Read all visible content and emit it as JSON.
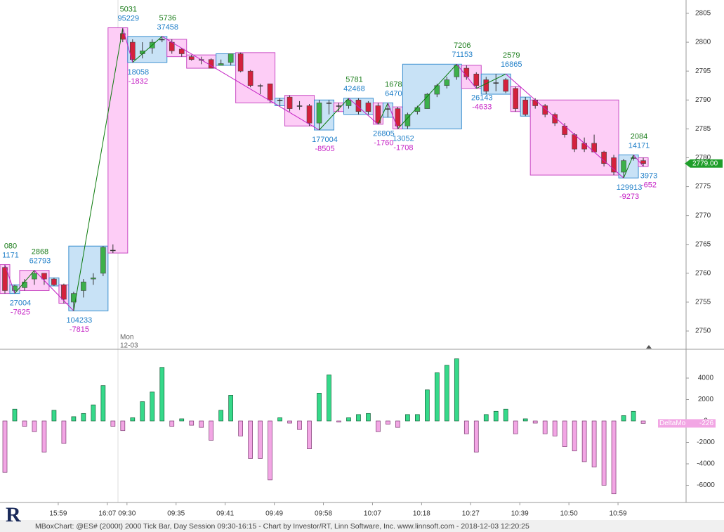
{
  "chart_data": [
    {
      "type": "candlestick",
      "ylim": [
        2746.96,
        2807.31
      ],
      "yticks": [
        2805,
        2800,
        2795,
        2790,
        2785,
        2780,
        2775,
        2770,
        2765,
        2760,
        2755,
        2750
      ],
      "up_color": "#3cb04a",
      "down_color": "#d4213d",
      "open": [
        2761,
        2757,
        2757.5,
        2759,
        2760,
        2759,
        2758,
        2755,
        2757,
        2759,
        2760,
        2764,
        2801.5,
        2800,
        2798,
        2799,
        2800.5,
        2800,
        2798.8,
        2797.5,
        2797,
        2797,
        2796,
        2796.5,
        2798,
        2795,
        2792.5,
        2792.8,
        2790,
        2790.5,
        2789,
        2789,
        2786,
        2789.5,
        2789,
        2789,
        2790,
        2789.5,
        2789,
        2788.5,
        2788.5,
        2785.5,
        2788,
        2788.5,
        2791,
        2792.5,
        2794,
        2795.5,
        2794.5,
        2793.5,
        2793,
        2793.5,
        2792,
        2790,
        2790,
        2789,
        2787.5,
        2785.5,
        2784,
        2782.5,
        2782.5,
        2781,
        2780,
        2777.5,
        2780,
        2779.5
      ],
      "high": [
        2761.5,
        2758,
        2759,
        2760.5,
        2760,
        2759.2,
        2758.2,
        2756.8,
        2759,
        2760,
        2764.7,
        2765,
        2802.5,
        2800.5,
        2800,
        2800.5,
        2801,
        2800.5,
        2799,
        2797.8,
        2797.5,
        2797.2,
        2797,
        2798,
        2798.2,
        2795.2,
        2792.8,
        2792.8,
        2790.3,
        2790.8,
        2789.8,
        2789.3,
        2790,
        2790,
        2789.5,
        2790.3,
        2790.3,
        2789.8,
        2789.5,
        2789.5,
        2788.8,
        2787.8,
        2789,
        2791.2,
        2792.8,
        2794,
        2796.2,
        2796,
        2794.8,
        2794,
        2794.5,
        2793.8,
        2792.3,
        2790.5,
        2790.3,
        2789.3,
        2787.8,
        2786,
        2784.3,
        2783.5,
        2784,
        2781.2,
        2780.5,
        2779.8,
        2780.5,
        2780
      ],
      "low": [
        2756.5,
        2756.5,
        2757,
        2758,
        2758,
        2757.8,
        2754.8,
        2753.5,
        2755.8,
        2758,
        2759.5,
        2763.5,
        2800,
        2796.5,
        2797.2,
        2798,
        2800,
        2798,
        2797.5,
        2796.8,
        2796.2,
        2795.5,
        2796,
        2796,
        2794.8,
        2792.2,
        2791,
        2789.5,
        2789,
        2788,
        2788.3,
        2785.5,
        2784.8,
        2787.5,
        2788,
        2788.5,
        2787.5,
        2787.5,
        2785.8,
        2787,
        2785,
        2785,
        2787.5,
        2788.5,
        2790.5,
        2792,
        2793.5,
        2793.5,
        2792,
        2791,
        2791.5,
        2791.2,
        2788,
        2787.2,
        2788.5,
        2787,
        2785.5,
        2783.5,
        2781,
        2781,
        2781,
        2778.5,
        2777,
        2776.5,
        2779.5,
        2778.5
      ],
      "close": [
        2757,
        2757.8,
        2758.5,
        2760,
        2759,
        2758,
        2755.5,
        2756.5,
        2758.5,
        2759.2,
        2764.5,
        2764,
        2800.5,
        2797,
        2798.5,
        2800,
        2800.5,
        2798.5,
        2798,
        2797,
        2797,
        2795.5,
        2796.3,
        2798,
        2795,
        2792.5,
        2792.5,
        2790,
        2790,
        2788.5,
        2789,
        2786,
        2789.5,
        2789.5,
        2789,
        2790,
        2788,
        2788,
        2786,
        2788.5,
        2785.5,
        2787.5,
        2788.7,
        2791,
        2792.5,
        2793.5,
        2796,
        2794,
        2792.5,
        2791.5,
        2793,
        2791.5,
        2788.5,
        2787.5,
        2789,
        2787.5,
        2786,
        2784,
        2781.5,
        2781.5,
        2781,
        2779,
        2777.5,
        2779.5,
        2780,
        2779
      ],
      "boxes": [
        {
          "from": 0,
          "to": 0,
          "high": 2761.5,
          "low": 2756.5,
          "direction": "down"
        },
        {
          "from": 1,
          "to": 1,
          "high": 2758,
          "low": 2756.5,
          "direction": "up"
        },
        {
          "from": 2,
          "to": 4,
          "high": 2760.5,
          "low": 2757,
          "direction": "down"
        },
        {
          "from": 5,
          "to": 5,
          "high": 2759.2,
          "low": 2757.8,
          "direction": "up"
        },
        {
          "from": 6,
          "to": 6,
          "high": 2758,
          "low": 2754.8,
          "direction": "down"
        },
        {
          "from": 7,
          "to": 10,
          "high": 2764.7,
          "low": 2753.5,
          "direction": "up"
        },
        {
          "from": 11,
          "to": 12,
          "high": 2802.5,
          "low": 2763.5,
          "direction": "down"
        },
        {
          "from": 13,
          "to": 16,
          "high": 2801,
          "low": 2796.5,
          "direction": "up"
        },
        {
          "from": 17,
          "to": 18,
          "high": 2800.5,
          "low": 2797.5,
          "direction": "down"
        },
        {
          "from": 19,
          "to": 21,
          "high": 2797.8,
          "low": 2795.5,
          "direction": "down"
        },
        {
          "from": 22,
          "to": 23,
          "high": 2798,
          "low": 2796,
          "direction": "up"
        },
        {
          "from": 24,
          "to": 27,
          "high": 2798.2,
          "low": 2789.5,
          "direction": "down"
        },
        {
          "from": 28,
          "to": 28,
          "high": 2790.3,
          "low": 2789,
          "direction": "up"
        },
        {
          "from": 29,
          "to": 31,
          "high": 2790.8,
          "low": 2785.5,
          "direction": "down"
        },
        {
          "from": 32,
          "to": 33,
          "high": 2790,
          "low": 2784.8,
          "direction": "up"
        },
        {
          "from": 34,
          "to": 34,
          "high": 2789.5,
          "low": 2788,
          "direction": "down"
        },
        {
          "from": 35,
          "to": 37,
          "high": 2790.3,
          "low": 2787.5,
          "direction": "up"
        },
        {
          "from": 38,
          "to": 38,
          "high": 2789.5,
          "low": 2785.8,
          "direction": "down"
        },
        {
          "from": 39,
          "to": 39,
          "high": 2789.5,
          "low": 2787,
          "direction": "up"
        },
        {
          "from": 40,
          "to": 40,
          "high": 2788.8,
          "low": 2785,
          "direction": "down"
        },
        {
          "from": 41,
          "to": 46,
          "high": 2796.2,
          "low": 2785,
          "direction": "up"
        },
        {
          "from": 47,
          "to": 48,
          "high": 2796,
          "low": 2792,
          "direction": "down"
        },
        {
          "from": 49,
          "to": 51,
          "high": 2794.5,
          "low": 2791,
          "direction": "up"
        },
        {
          "from": 52,
          "to": 52,
          "high": 2792.3,
          "low": 2788,
          "direction": "down"
        },
        {
          "from": 53,
          "to": 53,
          "high": 2790.5,
          "low": 2787.2,
          "direction": "up"
        },
        {
          "from": 54,
          "to": 62,
          "high": 2790,
          "low": 2777,
          "direction": "down"
        },
        {
          "from": 63,
          "to": 64,
          "high": 2780.5,
          "low": 2776.5,
          "direction": "up"
        },
        {
          "from": 65,
          "to": 65,
          "high": 2780,
          "low": 2778.5,
          "direction": "down"
        }
      ],
      "pivots": [
        {
          "index": 0,
          "price": 2761.5,
          "side": "top",
          "labels": [
            "080",
            "1171"
          ]
        },
        {
          "index": 1,
          "price": 2756.5,
          "side": "bottom",
          "labels": [
            "27004",
            "-7625"
          ]
        },
        {
          "index": 3,
          "price": 2760.5,
          "side": "top",
          "labels": [
            "2868",
            "62793"
          ]
        },
        {
          "index": 7,
          "price": 2753.5,
          "side": "bottom",
          "labels": [
            "104233",
            "-7815"
          ]
        },
        {
          "index": 12,
          "price": 2802.5,
          "side": "top",
          "labels": [
            "5031",
            "95229"
          ]
        },
        {
          "index": 13,
          "price": 2796.5,
          "side": "bottom",
          "labels": [
            "18058",
            "-1832"
          ]
        },
        {
          "index": 16,
          "price": 2801,
          "side": "top",
          "labels": [
            "5736",
            "37458"
          ]
        },
        {
          "index": 32,
          "price": 2784.8,
          "side": "bottom",
          "labels": [
            "177004",
            "-8505"
          ]
        },
        {
          "index": 35,
          "price": 2790.3,
          "side": "top",
          "labels": [
            "5781",
            "42468"
          ]
        },
        {
          "index": 38,
          "price": 2785.8,
          "side": "bottom",
          "labels": [
            "26805",
            "-1760"
          ]
        },
        {
          "index": 39,
          "price": 2789.5,
          "side": "top",
          "labels": [
            "1678",
            "6470"
          ]
        },
        {
          "index": 40,
          "price": 2785,
          "side": "bottom",
          "labels": [
            "13052",
            "-1708"
          ]
        },
        {
          "index": 46,
          "price": 2796.2,
          "side": "top",
          "labels": [
            "7206",
            "71153"
          ]
        },
        {
          "index": 48,
          "price": 2792,
          "side": "bottom",
          "labels": [
            "26143",
            "-4633"
          ]
        },
        {
          "index": 51,
          "price": 2794.5,
          "side": "top",
          "labels": [
            "2579",
            "16865"
          ]
        },
        {
          "index": 63,
          "price": 2776.5,
          "side": "bottom",
          "labels": [
            "129913",
            "-9273"
          ]
        },
        {
          "index": 64,
          "price": 2780.5,
          "side": "top",
          "labels": [
            "2084",
            "14171"
          ]
        },
        {
          "index": 65,
          "price": 2778.5,
          "side": "bottom",
          "labels": [
            "3973",
            "-652"
          ]
        }
      ],
      "last_price": {
        "value": 2779,
        "label": "2779.00"
      },
      "session_label": [
        "Mon",
        "12-03"
      ]
    },
    {
      "type": "bar",
      "ylim": [
        -7607,
        6623
      ],
      "yticks": [
        4000,
        2000,
        0,
        -2000,
        -4000,
        -6000
      ],
      "categories": [
        null,
        null,
        null,
        null,
        null,
        "15:59",
        null,
        null,
        null,
        null,
        "16:07",
        null,
        "09:30",
        null,
        null,
        null,
        null,
        "09:35",
        null,
        null,
        null,
        null,
        "09:41",
        null,
        null,
        null,
        null,
        "09:49",
        null,
        null,
        null,
        null,
        "09:58",
        null,
        null,
        null,
        null,
        "10:07",
        null,
        null,
        null,
        null,
        "10:18",
        null,
        null,
        null,
        null,
        "10:27",
        null,
        null,
        null,
        null,
        "10:39",
        null,
        null,
        null,
        null,
        "10:50",
        null,
        null,
        null,
        null,
        "10:59",
        null,
        null,
        null
      ],
      "series": [
        {
          "name": "DeltaMo",
          "up_color": "#36d98a",
          "down_color": "#f2a6e4",
          "values": [
            -4800,
            1100,
            -500,
            -1000,
            -2900,
            1000,
            -2100,
            400,
            700,
            1500,
            3300,
            -500,
            -900,
            300,
            1800,
            2700,
            5000,
            -500,
            200,
            -400,
            -600,
            -1800,
            1000,
            2400,
            -1400,
            -3500,
            -3500,
            -5500,
            300,
            -200,
            -800,
            -2600,
            2600,
            4300,
            -100,
            300,
            600,
            700,
            -1000,
            -300,
            -600,
            600,
            600,
            2900,
            4500,
            5200,
            5800,
            -1200,
            -2900,
            600,
            900,
            1100,
            -1200,
            200,
            -200,
            -1200,
            -1400,
            -2400,
            -2800,
            -3800,
            -4300,
            -6000,
            -6800,
            500,
            900,
            -226
          ]
        }
      ]
    }
  ],
  "footer": "MBoxChart: @ES# (2000t) 2000 Tick Bar, Day Session 09:30-16:15 - Chart by Investor/RT, Linn Software, Inc. www.linnsoft.com - 2018-12-03 12:20:25"
}
